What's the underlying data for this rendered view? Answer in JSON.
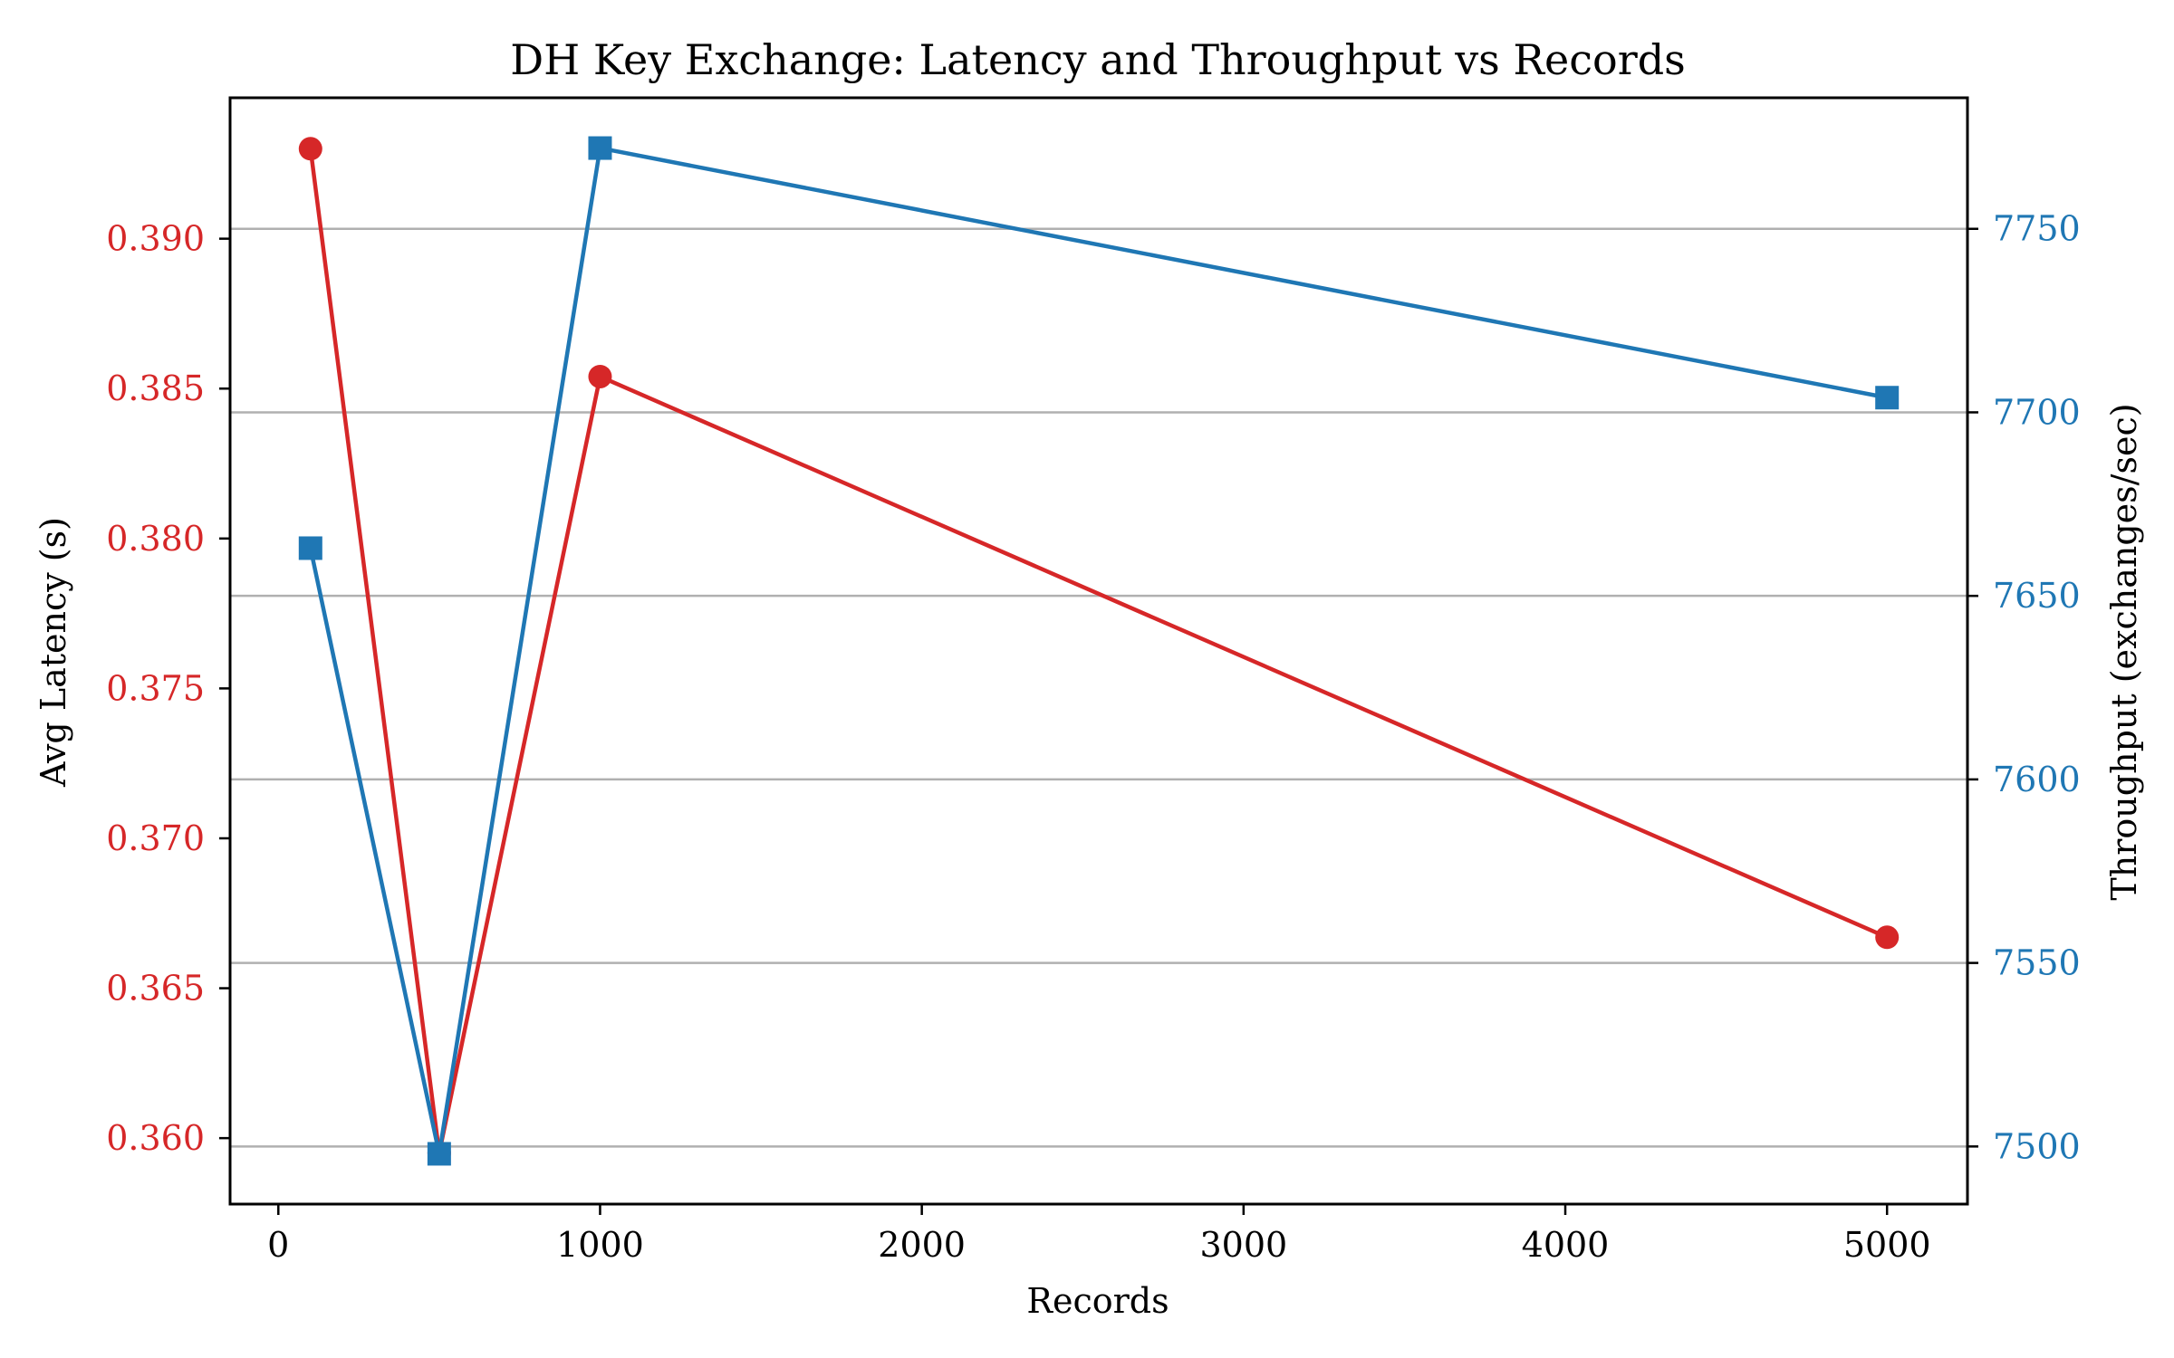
{
  "chart_data": {
    "type": "line",
    "title": "DH Key Exchange: Latency and Throughput vs Records",
    "xlabel": "Records",
    "xlim": [
      -150,
      5250
    ],
    "x_ticks": [
      0,
      1000,
      2000,
      3000,
      4000,
      5000
    ],
    "x": [
      100,
      500,
      1000,
      5000
    ],
    "grid": "horizontal lines at right-axis ticks",
    "series": [
      {
        "name": "",
        "axis": "left",
        "marker": "circle",
        "color": "#d62728",
        "values": [
          0.393,
          0.3595,
          0.3854,
          0.3667
        ]
      },
      {
        "name": "",
        "axis": "right",
        "marker": "square",
        "color": "#1f77b4",
        "values": [
          7663,
          7498,
          7772,
          7704
        ]
      }
    ],
    "y_left": {
      "label": "Avg Latency (s)",
      "color": "#d62728",
      "lim": [
        0.3578,
        0.3947
      ],
      "ticks": [
        "0.360",
        "0.365",
        "0.370",
        "0.375",
        "0.380",
        "0.385",
        "0.390"
      ]
    },
    "y_right": {
      "label": "Throughput (exchanges/sec)",
      "color": "#1f77b4",
      "lim": [
        7484.3,
        7785.7
      ],
      "ticks": [
        "7500",
        "7550",
        "7600",
        "7650",
        "7700",
        "7750"
      ]
    }
  }
}
